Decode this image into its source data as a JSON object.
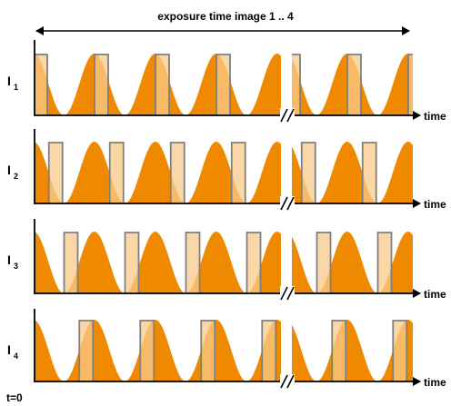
{
  "title": "exposure time image 1 .. 4",
  "axis_label": "time",
  "origin_label": "t=0",
  "rows": [
    {
      "label": "I",
      "sub": "1",
      "shift": 0.0
    },
    {
      "label": "I",
      "sub": "2",
      "shift": 0.25
    },
    {
      "label": "I",
      "sub": "3",
      "shift": 0.5
    },
    {
      "label": "I",
      "sub": "4",
      "shift": 0.75
    }
  ],
  "colors": {
    "signal_fill": "#ef8a00",
    "overlap_fill": "#f9c98a",
    "gate_stroke": "#7f7f7f",
    "axis": "#000000"
  }
}
